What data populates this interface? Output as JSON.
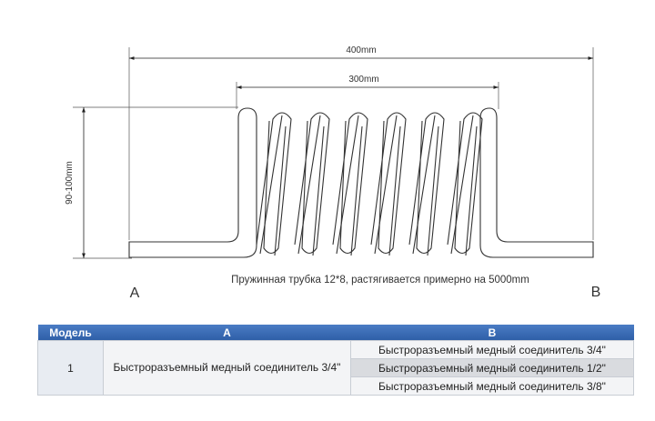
{
  "dimensions": {
    "overall_length": "400mm",
    "coil_length": "300mm",
    "height": "90-100mm"
  },
  "caption": "Пружинная трубка 12*8, растягивается примерно на 5000mm",
  "end_labels": {
    "a": "A",
    "b": "B"
  },
  "table": {
    "headers": {
      "model": "Модель",
      "a": "A",
      "b": "B"
    },
    "model": "1",
    "a_value": "Быстроразъемный медный соединитель 3/4\"",
    "b_values": [
      "Быстроразъемный медный соединитель 3/4\"",
      "Быстроразъемный медный соединитель 1/2\"",
      "Быстроразъемный медный соединитель 3/8\""
    ]
  },
  "colors": {
    "header_blue": "#3a6bb5",
    "line": "#444444"
  }
}
